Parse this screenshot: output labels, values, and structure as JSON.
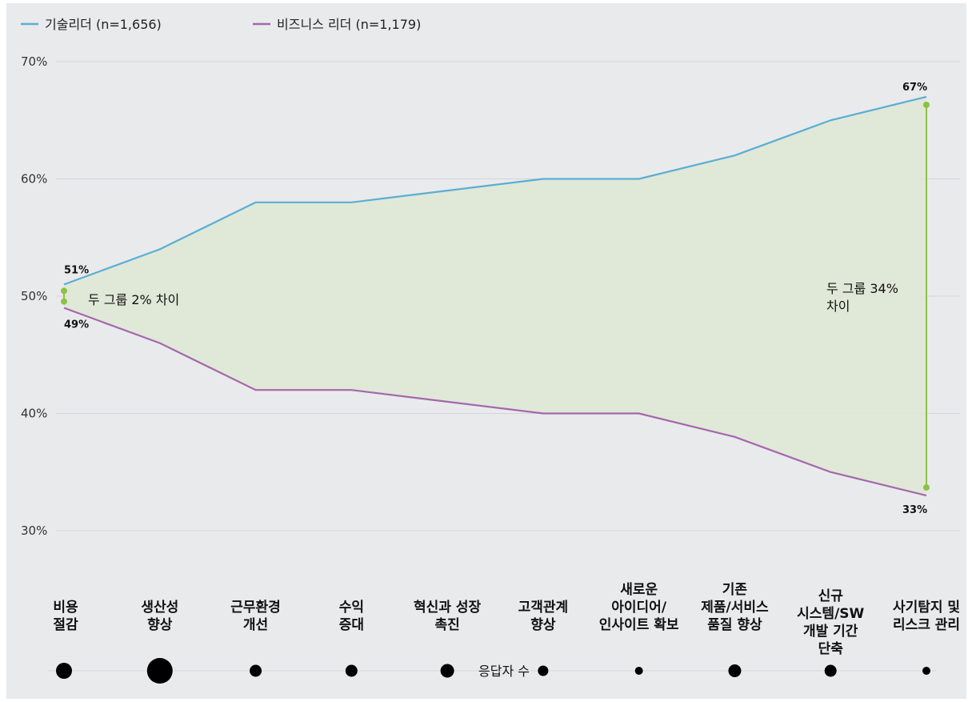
{
  "chart_data": {
    "type": "line",
    "categories": [
      [
        "비용",
        "절감"
      ],
      [
        "생산성",
        "향상"
      ],
      [
        "근무환경",
        "개선"
      ],
      [
        "수익",
        "증대"
      ],
      [
        "혁신과 성장",
        "촉진"
      ],
      [
        "고객관계",
        "향상"
      ],
      [
        "새로운",
        "아이디어/",
        "인사이트 확보"
      ],
      [
        "기존",
        "제품/서비스",
        "품질 향상"
      ],
      [
        "신규",
        "시스템/SW",
        "개발 기간",
        "단축"
      ],
      [
        "사기탐지 및",
        "리스크 관리"
      ]
    ],
    "series": [
      {
        "name": "기술리더 (n=1,656)",
        "color": "#5aaed3",
        "values": [
          51,
          54,
          58,
          58,
          59,
          60,
          60,
          62,
          65,
          67
        ]
      },
      {
        "name": "비즈니스 리더 (n=1,179)",
        "color": "#a567ad",
        "values": [
          49,
          46,
          42,
          42,
          41,
          40,
          40,
          38,
          35,
          33
        ]
      }
    ],
    "ylim": [
      30,
      70
    ],
    "yticks": [
      "30%",
      "40%",
      "50%",
      "60%",
      "70%"
    ],
    "yticks_values": [
      30,
      40,
      50,
      60,
      70
    ],
    "fill_color": "#dfe8d6",
    "gap_color": "#8dc145",
    "point_labels": {
      "first_top": "51%",
      "first_bottom": "49%",
      "last_top": "67%",
      "last_bottom": "33%"
    },
    "annotations": {
      "left": "두 그룹 2% 차이",
      "right": [
        "두 그룹 34%",
        "차이"
      ]
    },
    "respondents_label": "응답자 수",
    "respondent_sizes": [
      1.0,
      1.6,
      0.75,
      0.75,
      0.85,
      0.65,
      0.5,
      0.8,
      0.75,
      0.5
    ],
    "grid": true,
    "legend_position": "top-left"
  }
}
